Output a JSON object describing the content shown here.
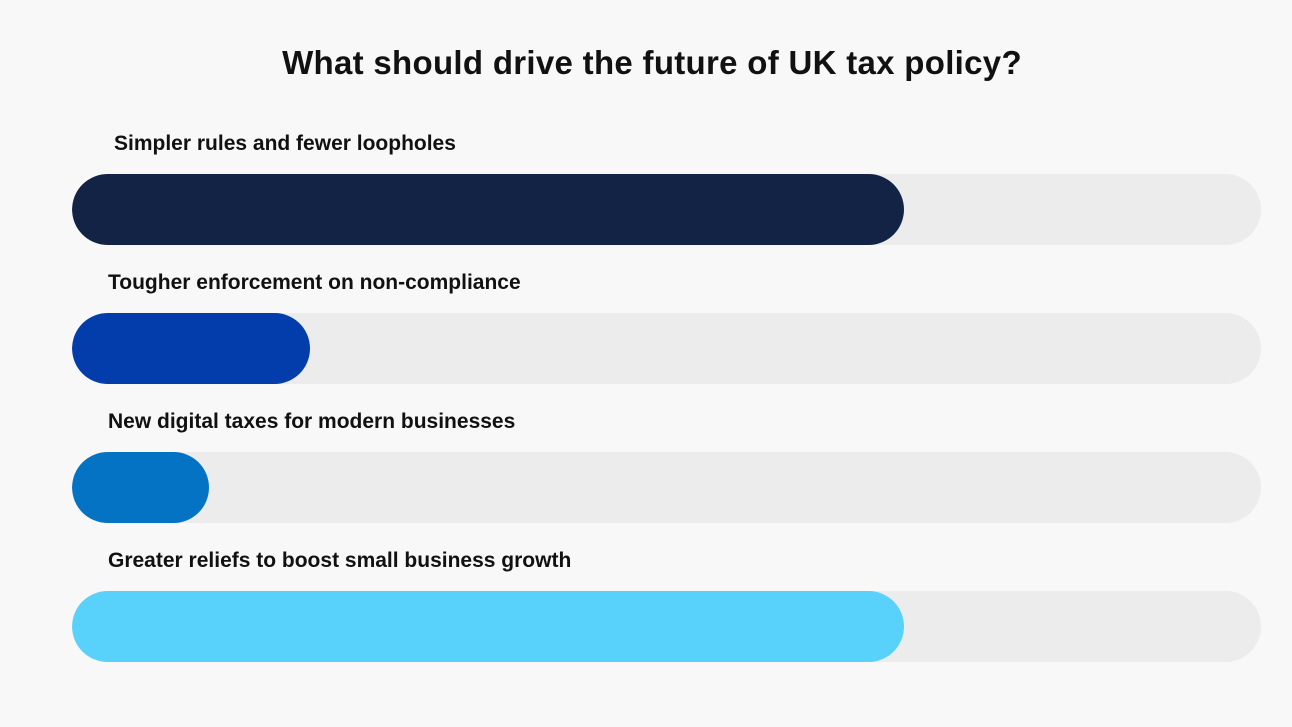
{
  "chart_data": {
    "type": "bar",
    "orientation": "horizontal",
    "title": "What should drive the future of UK tax policy?",
    "categories": [
      "Simpler rules and fewer loopholes",
      "Tougher enforcement on non-compliance",
      "New digital taxes for modern businesses",
      "Greater reliefs to boost small business growth"
    ],
    "values": [
      0.7,
      0.2,
      0.115,
      0.7
    ],
    "value_unit": "fraction of full bar",
    "colors": [
      "#132345",
      "#033cab",
      "#0473c4",
      "#58d1fb"
    ],
    "track_color": "#ececec",
    "background": "#f8f8f9"
  }
}
